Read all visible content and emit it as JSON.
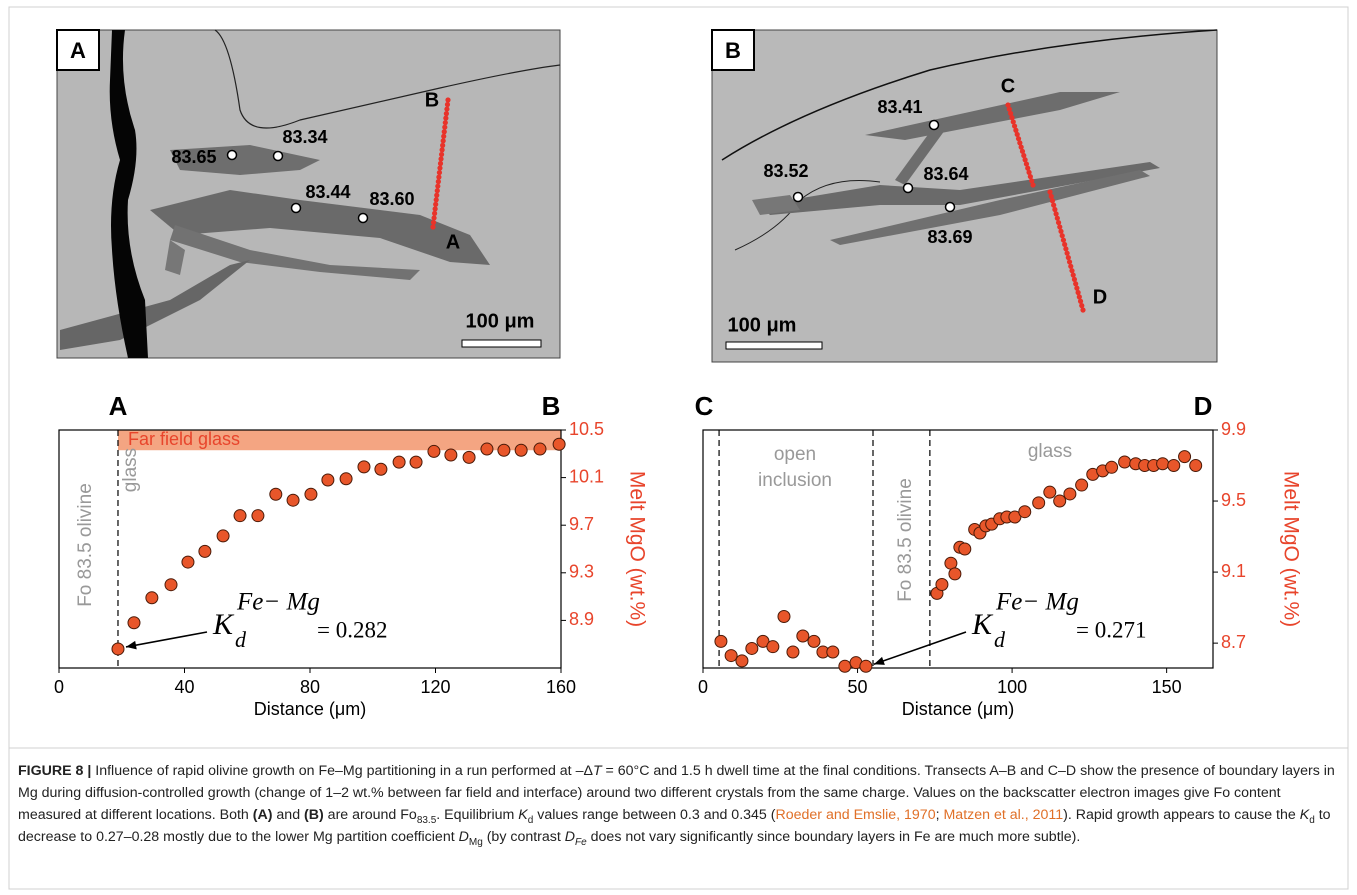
{
  "panels": [
    {
      "letter": "A",
      "points": [
        "83.65",
        "83.34",
        "83.44",
        "83.60"
      ],
      "transect": [
        "B",
        "A"
      ],
      "scale": "100 μm"
    },
    {
      "letter": "B",
      "points": [
        "83.41",
        "83.52",
        "83.64",
        "83.69"
      ],
      "transect": [
        "C",
        "D"
      ],
      "scale": "100 μm"
    }
  ],
  "chart_data": [
    {
      "type": "scatter",
      "start_label": "A",
      "end_label": "B",
      "xlabel": "Distance (μm)",
      "ylabel": "Melt MgO (wt.%)",
      "color": "#e8562a",
      "x": [
        18.8,
        23.9,
        29.6,
        35.7,
        41.1,
        46.5,
        52.3,
        57.7,
        63.4,
        69.1,
        74.6,
        80.3,
        85.7,
        91.5,
        97.2,
        102.6,
        108.4,
        113.8,
        119.5,
        124.9,
        130.7,
        136.4,
        141.8,
        147.3,
        153.3,
        159.4
      ],
      "values": [
        8.66,
        8.88,
        9.09,
        9.2,
        9.39,
        9.48,
        9.61,
        9.78,
        9.78,
        9.96,
        9.91,
        9.96,
        10.08,
        10.09,
        10.19,
        10.17,
        10.23,
        10.23,
        10.32,
        10.29,
        10.27,
        10.34,
        10.33,
        10.33,
        10.34,
        10.38
      ],
      "xlim": [
        0,
        160
      ],
      "ylim": [
        8.5,
        10.5
      ],
      "xticks": [
        0,
        40,
        80,
        120,
        160
      ],
      "yticks": [
        8.9,
        9.3,
        9.7,
        10.1,
        10.5
      ],
      "y_axis_side": "right",
      "boundaries": [
        18.8
      ],
      "band": {
        "label": "Far field glass",
        "xlim": [
          18.8,
          160
        ],
        "ylim": [
          10.33,
          10.5
        ],
        "color": "#f4a582"
      },
      "regions": [
        [
          "Fo 83.5 olivine"
        ],
        [
          "glass"
        ]
      ],
      "kd": {
        "symbol": "K",
        "subscript": "d",
        "superscript": "Fe− Mg",
        "value_text": "= 0.282"
      }
    },
    {
      "type": "scatter",
      "start_label": "C",
      "end_label": "D",
      "xlabel": "Distance (μm)",
      "ylabel": "Melt MgO (wt.%)",
      "color": "#e8562a",
      "x": [
        5.8,
        9.1,
        12.6,
        15.8,
        19.4,
        22.6,
        26.2,
        29.1,
        32.3,
        35.9,
        38.8,
        42.0,
        45.9,
        49.5,
        52.7,
        75.7,
        77.3,
        80.2,
        81.5,
        83.1,
        84.7,
        87.9,
        89.6,
        91.5,
        93.4,
        96.0,
        98.3,
        100.9,
        104.1,
        108.6,
        112.2,
        115.4,
        118.7,
        122.5,
        126.1,
        129.3,
        132.2,
        136.4,
        140.0,
        142.9,
        145.8,
        148.7,
        152.3,
        155.8,
        159.4
      ],
      "values": [
        8.71,
        8.63,
        8.6,
        8.67,
        8.71,
        8.68,
        8.85,
        8.65,
        8.74,
        8.71,
        8.65,
        8.65,
        8.57,
        8.59,
        8.57,
        8.98,
        9.03,
        9.15,
        9.09,
        9.24,
        9.23,
        9.34,
        9.32,
        9.36,
        9.37,
        9.4,
        9.41,
        9.41,
        9.44,
        9.49,
        9.55,
        9.5,
        9.54,
        9.59,
        9.65,
        9.67,
        9.69,
        9.72,
        9.71,
        9.7,
        9.7,
        9.71,
        9.7,
        9.75,
        9.7
      ],
      "xlim": [
        0,
        165
      ],
      "ylim": [
        8.56,
        9.9
      ],
      "xticks": [
        0,
        50,
        100,
        150
      ],
      "yticks": [
        8.7,
        9.1,
        9.5,
        9.9
      ],
      "y_axis_side": "right",
      "boundaries": [
        5.2,
        55,
        73.4
      ],
      "regions": [
        [
          "open",
          "inclusion"
        ],
        [
          "Fo 83.5 olivine"
        ],
        [
          "glass"
        ]
      ],
      "kd": {
        "symbol": "K",
        "subscript": "d",
        "superscript": "Fe− Mg",
        "value_text": "= 0.271"
      }
    }
  ],
  "caption": {
    "parts": [
      "FIGURE 8 |",
      " Influence of rapid olivine growth on Fe–Mg partitioning in a run performed at –Δ",
      "T",
      " = 60°C and 1.5 h dwell time at the final conditions. Transects A–B and C–D show the presence of boundary layers in Mg during diffusion-controlled growth (change of 1–2 wt.% between far field and interface) around two different crystals from the same charge. Values on the backscatter electron images give Fo content measured at different locations. Both ",
      "(A)",
      " and ",
      "(B)",
      " are around Fo",
      "83.5",
      ". Equilibrium ",
      "K",
      "d",
      " values range between 0.3 and 0.345 (",
      "Roeder and Emslie, 1970",
      "; ",
      "Matzen et al., 2011",
      "). Rapid growth appears to cause the ",
      "K",
      "d",
      " to decrease to 0.27–0.28 mostly due to the lower Mg partition coefficient ",
      "D",
      "Mg",
      " (by contrast ",
      "D",
      "Fe",
      " does not vary significantly since boundary layers in Fe are much more subtle)."
    ]
  }
}
